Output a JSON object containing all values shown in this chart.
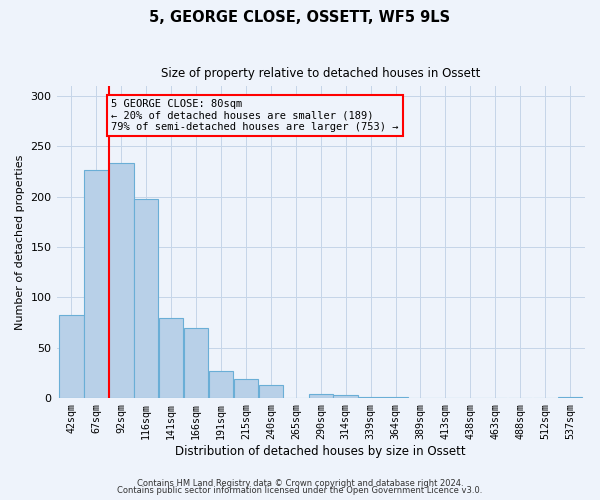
{
  "title": "5, GEORGE CLOSE, OSSETT, WF5 9LS",
  "subtitle": "Size of property relative to detached houses in Ossett",
  "xlabel": "Distribution of detached houses by size in Ossett",
  "ylabel": "Number of detached properties",
  "bar_labels": [
    "42sqm",
    "67sqm",
    "92sqm",
    "116sqm",
    "141sqm",
    "166sqm",
    "191sqm",
    "215sqm",
    "240sqm",
    "265sqm",
    "290sqm",
    "314sqm",
    "339sqm",
    "364sqm",
    "389sqm",
    "413sqm",
    "438sqm",
    "463sqm",
    "488sqm",
    "512sqm",
    "537sqm"
  ],
  "bar_values": [
    82,
    226,
    233,
    198,
    80,
    70,
    27,
    19,
    13,
    0,
    4,
    3,
    1,
    1,
    0,
    0,
    0,
    0,
    0,
    0,
    1
  ],
  "bar_color": "#b8d0e8",
  "bar_edge_color": "#6aaed6",
  "annotation_title": "5 GEORGE CLOSE: 80sqm",
  "annotation_line1": "← 20% of detached houses are smaller (189)",
  "annotation_line2": "79% of semi-detached houses are larger (753) →",
  "ylim": [
    0,
    310
  ],
  "yticks": [
    0,
    50,
    100,
    150,
    200,
    250,
    300
  ],
  "footer1": "Contains HM Land Registry data © Crown copyright and database right 2024.",
  "footer2": "Contains public sector information licensed under the Open Government Licence v3.0.",
  "bg_color": "#eef3fb",
  "grid_color": "#c5d5e8"
}
